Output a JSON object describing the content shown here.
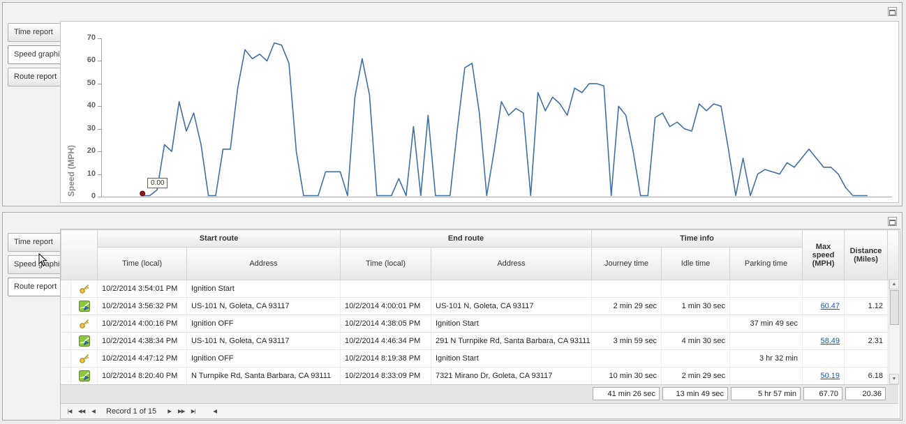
{
  "panels": {
    "top": {
      "tabs": [
        {
          "label": "Time report",
          "selected": false
        },
        {
          "label": "Speed graphic",
          "selected": true
        },
        {
          "label": "Route report",
          "selected": false
        }
      ]
    },
    "bottom": {
      "tabs": [
        {
          "label": "Time report",
          "selected": false
        },
        {
          "label": "Speed graphic",
          "selected": false
        },
        {
          "label": "Route report",
          "selected": true
        }
      ]
    }
  },
  "chart_data": {
    "type": "line",
    "title": "",
    "ylabel": "Speed (MPH)",
    "ylim": [
      0,
      70
    ],
    "yticks": [
      0,
      10,
      20,
      30,
      40,
      50,
      60,
      70
    ],
    "x_axis_labels_visible": false,
    "grid": false,
    "line_color": "#3f6fa8",
    "marker": {
      "index": 0,
      "value": 0,
      "label": "0.00",
      "color": "#8b1a1a"
    },
    "values": [
      0,
      0,
      3,
      23,
      20,
      42,
      29,
      37,
      23,
      0,
      0,
      21,
      21,
      48,
      65,
      61,
      63,
      60,
      68,
      67,
      59,
      20,
      0,
      0,
      0,
      11,
      11,
      11,
      0,
      44,
      61,
      45,
      0,
      0,
      0,
      8,
      0,
      31,
      0,
      36,
      0,
      0,
      0,
      30,
      57,
      59,
      37,
      0,
      20,
      42,
      36,
      39,
      37,
      0,
      46,
      38,
      44,
      41,
      36,
      48,
      46,
      50,
      50,
      49,
      0,
      40,
      36,
      20,
      0,
      0,
      35,
      37,
      31,
      33,
      30,
      29,
      41,
      38,
      41,
      40,
      21,
      0,
      17,
      0,
      10,
      12,
      11,
      10,
      15,
      13,
      17,
      21,
      17,
      13,
      13,
      10,
      4,
      0,
      0,
      0
    ]
  },
  "table": {
    "groups": [
      {
        "label": "Start route",
        "span": 2
      },
      {
        "label": "End route",
        "span": 2
      },
      {
        "label": "Time info",
        "span": 3
      }
    ],
    "columns": [
      "Time (local)",
      "Address",
      "Time (local)",
      "Address",
      "Journey time",
      "Idle time",
      "Parking time",
      "Max speed (MPH)",
      "Distance (Miles)"
    ],
    "rows": [
      {
        "icon": "key",
        "start_time": "10/2/2014 3:54:01 PM",
        "start_address": "Ignition Start",
        "end_time": "",
        "end_address": "",
        "journey_time": "",
        "idle_time": "",
        "parking_time": "",
        "max_speed": "",
        "max_speed_link": false,
        "distance": ""
      },
      {
        "icon": "route",
        "start_time": "10/2/2014 3:56:32 PM",
        "start_address": "US-101 N, Goleta, CA 93117",
        "end_time": "10/2/2014 4:00:01 PM",
        "end_address": "US-101 N, Goleta, CA 93117",
        "journey_time": "2 min 29 sec",
        "idle_time": "1 min 30 sec",
        "parking_time": "",
        "max_speed": "60.47",
        "max_speed_link": true,
        "distance": "1.12"
      },
      {
        "icon": "key",
        "start_time": "10/2/2014 4:00:16 PM",
        "start_address": "Ignition OFF",
        "end_time": "10/2/2014 4:38:05 PM",
        "end_address": "Ignition Start",
        "journey_time": "",
        "idle_time": "",
        "parking_time": "37 min 49 sec",
        "max_speed": "",
        "max_speed_link": false,
        "distance": ""
      },
      {
        "icon": "route",
        "start_time": "10/2/2014 4:38:34 PM",
        "start_address": "US-101 N, Goleta, CA 93117",
        "end_time": "10/2/2014 4:46:34 PM",
        "end_address": "291 N Turnpike Rd, Santa Barbara, CA 93111",
        "journey_time": "3 min 59 sec",
        "idle_time": "4 min 30 sec",
        "parking_time": "",
        "max_speed": "58.49",
        "max_speed_link": true,
        "distance": "2.31"
      },
      {
        "icon": "key",
        "start_time": "10/2/2014 4:47:12 PM",
        "start_address": "Ignition OFF",
        "end_time": "10/2/2014 8:19:38 PM",
        "end_address": "Ignition Start",
        "journey_time": "",
        "idle_time": "",
        "parking_time": "3 hr 32 min",
        "max_speed": "",
        "max_speed_link": false,
        "distance": ""
      },
      {
        "icon": "route",
        "start_time": "10/2/2014 8:20:40 PM",
        "start_address": "N Turnpike Rd, Santa Barbara, CA 93111",
        "end_time": "10/2/2014 8:33:09 PM",
        "end_address": "7321 Mirano Dr, Goleta, CA 93117",
        "journey_time": "10 min 30 sec",
        "idle_time": "2 min 29 sec",
        "parking_time": "",
        "max_speed": "50.19",
        "max_speed_link": true,
        "distance": "6.18"
      }
    ],
    "summary": {
      "journey_time": "41 min 26 sec",
      "idle_time": "13 min 49 sec",
      "parking_time": "5 hr 57 min",
      "max_speed": "67.70",
      "distance": "20.36"
    },
    "navigator": {
      "label": "Record 1 of 15",
      "buttons_left": [
        "|◀",
        "◀◀",
        "◀"
      ],
      "buttons_right": [
        "▶",
        "▶▶",
        "▶|"
      ],
      "scroll_left": "◀"
    }
  }
}
